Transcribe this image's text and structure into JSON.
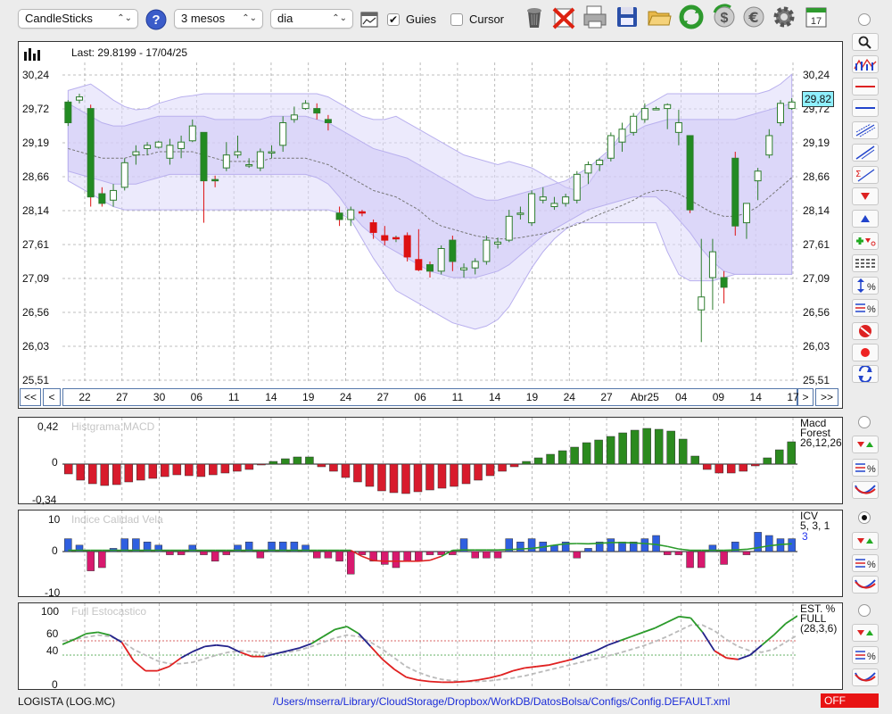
{
  "toolbar": {
    "chart_type": "CandleSticks",
    "period": "3 mesos",
    "interval": "dia",
    "guides_label": "Guies",
    "guides_checked": true,
    "cursor_label": "Cursor",
    "cursor_checked": false
  },
  "price_panel": {
    "last_info": "Last: 29.8199 - 17/04/25",
    "current_value": "29,82",
    "y_labels": [
      "30,24",
      "29,72",
      "29,19",
      "28,66",
      "28,14",
      "27,61",
      "27,09",
      "26,56",
      "26,03",
      "25,51"
    ],
    "x_labels": [
      "22",
      "27",
      "30",
      "06",
      "11",
      "14",
      "19",
      "24",
      "27",
      "06",
      "11",
      "14",
      "19",
      "24",
      "27",
      "Abr25",
      "04",
      "09",
      "14",
      "17"
    ]
  },
  "nav": {
    "first": "<<",
    "prev": "<",
    "next": ">",
    "last": ">>"
  },
  "macd": {
    "title": "Histgrama MACD",
    "label1": "Macd",
    "label2": "Forest",
    "label3": "26,12,26",
    "y_labels": [
      "0,42",
      "0",
      "-0,34"
    ],
    "values": [
      -0.11,
      -0.18,
      -0.22,
      -0.24,
      -0.23,
      -0.2,
      -0.18,
      -0.16,
      -0.14,
      -0.12,
      -0.13,
      -0.14,
      -0.12,
      -0.1,
      -0.08,
      -0.06,
      -0.01,
      0.03,
      0.06,
      0.08,
      0.08,
      -0.03,
      -0.08,
      -0.15,
      -0.2,
      -0.25,
      -0.3,
      -0.32,
      -0.33,
      -0.31,
      -0.29,
      -0.27,
      -0.25,
      -0.22,
      -0.18,
      -0.13,
      -0.08,
      -0.03,
      0.03,
      0.07,
      0.11,
      0.15,
      0.19,
      0.24,
      0.27,
      0.31,
      0.35,
      0.38,
      0.4,
      0.39,
      0.37,
      0.28,
      0.09,
      -0.06,
      -0.1,
      -0.1,
      -0.08,
      -0.02,
      0.07,
      0.16,
      0.25
    ]
  },
  "icv": {
    "title": "Indice Calidad Vela",
    "label1": "ICV",
    "label2": "5, 3, 1",
    "label3": "3",
    "y_labels": [
      "10",
      "0",
      "-10"
    ],
    "values": [
      4,
      2,
      -6,
      -5,
      1,
      4,
      4,
      3,
      2,
      -1,
      -1,
      2,
      -1,
      -3,
      -1,
      2,
      3,
      -2,
      3,
      3,
      3,
      2,
      -2,
      -2,
      -3,
      -7,
      -1,
      -3,
      -4,
      -5,
      -3,
      -3,
      -1,
      -1,
      -1,
      4,
      -2,
      -2,
      -2,
      4,
      3,
      4,
      3,
      2,
      3,
      -2,
      1,
      3,
      4,
      3,
      3,
      4,
      5,
      -1,
      -1,
      -5,
      -5,
      2,
      -4,
      3,
      -1,
      6,
      5,
      4,
      4
    ],
    "signal": [
      0.4,
      0.4,
      0.4,
      0.4,
      0.4,
      0.4,
      0.4,
      0.4,
      0.4,
      0.4,
      0.4,
      0.4,
      0.4,
      0.4,
      0.4,
      0.4,
      0.4,
      0.4,
      0.4,
      0.4,
      0.4,
      0.4,
      0.4,
      0.4,
      0.4,
      0.4,
      -1.5,
      -2.8,
      -3.0,
      -3.0,
      -3.0,
      -3.0,
      -2.7,
      -1.5,
      0.4,
      0.5,
      0.5,
      0.5,
      0.5,
      0.6,
      0.8,
      1,
      1.4,
      2,
      2.4,
      2.5,
      2.4,
      2.6,
      2.8,
      2.8,
      2.7,
      2.5,
      2.2,
      1.6,
      0.8,
      0.4,
      0.4,
      0.4,
      0.4,
      0.5,
      0.7,
      1.2,
      1.8,
      2.2,
      2.4
    ]
  },
  "stoch": {
    "title": "Full Estocastico",
    "label1": "EST. %",
    "label2": "FULL",
    "label3": "(28,3,6)",
    "y_labels": [
      "100",
      "60",
      "40",
      "0"
    ],
    "k": [
      55,
      62,
      70,
      72,
      68,
      58,
      32,
      18,
      18,
      24,
      36,
      45,
      52,
      54,
      52,
      44,
      38,
      38,
      42,
      46,
      50,
      56,
      66,
      76,
      80,
      70,
      52,
      34,
      20,
      9,
      5,
      3,
      2,
      2,
      3,
      5,
      8,
      12,
      18,
      22,
      24,
      26,
      30,
      34,
      40,
      46,
      54,
      60,
      66,
      72,
      78,
      86,
      94,
      92,
      72,
      46,
      36,
      34,
      40,
      54,
      68,
      84,
      95
    ],
    "d": [
      60,
      62,
      65,
      68,
      66,
      60,
      48,
      40,
      32,
      28,
      28,
      30,
      35,
      40,
      44,
      46,
      45,
      43,
      42,
      44,
      47,
      52,
      58,
      64,
      68,
      66,
      58,
      48,
      36,
      24,
      16,
      10,
      6,
      4,
      3,
      3,
      4,
      6,
      8,
      11,
      15,
      19,
      23,
      27,
      31,
      35,
      39,
      43,
      48,
      53,
      59,
      66,
      74,
      82,
      82,
      74,
      62,
      52,
      46,
      44,
      48,
      58,
      68
    ]
  },
  "status": {
    "ticker": "LOGISTA (LOG.MC)",
    "config_path": "/Users/mserra/Library/CloudStorage/Dropbox/WorkDB/DatosBolsa/Configs/Config.DEFAULT.xml",
    "off_label": "OFF"
  },
  "colors": {
    "bull": "#228b22",
    "bear": "#dd1111",
    "band": "#ddd8fa",
    "macd_pos": "#2b8a1e",
    "macd_neg": "#d81b2c",
    "icv_pos": "#2f5fe0",
    "icv_neg": "#d8196e"
  },
  "chart_data": {
    "type": "candlestick",
    "y_range": [
      25.51,
      30.24
    ],
    "candles": [
      {
        "o": 29.5,
        "h": 29.85,
        "l": 29.45,
        "c": 29.82
      },
      {
        "o": 29.85,
        "h": 29.95,
        "l": 29.8,
        "c": 29.9
      },
      {
        "o": 29.72,
        "h": 29.78,
        "l": 28.2,
        "c": 28.35
      },
      {
        "o": 28.4,
        "h": 28.5,
        "l": 28.2,
        "c": 28.25
      },
      {
        "o": 28.3,
        "h": 28.55,
        "l": 28.2,
        "c": 28.45
      },
      {
        "o": 28.5,
        "h": 28.95,
        "l": 28.45,
        "c": 28.88
      },
      {
        "o": 29.0,
        "h": 29.15,
        "l": 28.85,
        "c": 29.05
      },
      {
        "o": 29.1,
        "h": 29.2,
        "l": 29.0,
        "c": 29.15
      },
      {
        "o": 29.12,
        "h": 29.22,
        "l": 29.1,
        "c": 29.2
      },
      {
        "o": 28.95,
        "h": 29.25,
        "l": 28.85,
        "c": 29.15
      },
      {
        "o": 29.1,
        "h": 29.3,
        "l": 28.95,
        "c": 29.2
      },
      {
        "o": 29.22,
        "h": 29.55,
        "l": 29.2,
        "c": 29.45
      },
      {
        "o": 29.35,
        "h": 29.35,
        "l": 27.95,
        "c": 28.6
      },
      {
        "o": 28.62,
        "h": 28.68,
        "l": 28.5,
        "c": 28.6
      },
      {
        "o": 28.8,
        "h": 29.2,
        "l": 28.75,
        "c": 29.0
      },
      {
        "o": 29.0,
        "h": 29.3,
        "l": 28.95,
        "c": 29.05
      },
      {
        "o": 28.85,
        "h": 28.95,
        "l": 28.8,
        "c": 28.85
      },
      {
        "o": 28.8,
        "h": 29.1,
        "l": 28.75,
        "c": 29.05
      },
      {
        "o": 29.05,
        "h": 29.15,
        "l": 28.95,
        "c": 29.05
      },
      {
        "o": 29.15,
        "h": 29.6,
        "l": 29.05,
        "c": 29.5
      },
      {
        "o": 29.55,
        "h": 29.75,
        "l": 29.5,
        "c": 29.62
      },
      {
        "o": 29.72,
        "h": 29.85,
        "l": 29.7,
        "c": 29.8
      },
      {
        "o": 29.72,
        "h": 29.8,
        "l": 29.55,
        "c": 29.65
      },
      {
        "o": 29.55,
        "h": 29.62,
        "l": 29.38,
        "c": 29.5
      },
      {
        "o": 28.1,
        "h": 28.2,
        "l": 27.9,
        "c": 28.0
      },
      {
        "o": 28.0,
        "h": 28.2,
        "l": 27.9,
        "c": 28.15
      },
      {
        "o": 28.12,
        "h": 28.15,
        "l": 28.05,
        "c": 28.1
      },
      {
        "o": 27.95,
        "h": 28.0,
        "l": 27.7,
        "c": 27.8
      },
      {
        "o": 27.75,
        "h": 27.9,
        "l": 27.6,
        "c": 27.68
      },
      {
        "o": 27.7,
        "h": 27.75,
        "l": 27.65,
        "c": 27.72
      },
      {
        "o": 27.75,
        "h": 27.8,
        "l": 27.35,
        "c": 27.42
      },
      {
        "o": 27.38,
        "h": 27.85,
        "l": 27.2,
        "c": 27.22
      },
      {
        "o": 27.3,
        "h": 27.35,
        "l": 27.1,
        "c": 27.2
      },
      {
        "o": 27.2,
        "h": 27.6,
        "l": 27.15,
        "c": 27.55
      },
      {
        "o": 27.68,
        "h": 27.75,
        "l": 27.2,
        "c": 27.35
      },
      {
        "o": 27.22,
        "h": 27.32,
        "l": 27.1,
        "c": 27.25
      },
      {
        "o": 27.25,
        "h": 27.4,
        "l": 27.15,
        "c": 27.35
      },
      {
        "o": 27.35,
        "h": 27.75,
        "l": 27.3,
        "c": 27.68
      },
      {
        "o": 27.62,
        "h": 27.72,
        "l": 27.55,
        "c": 27.65
      },
      {
        "o": 27.68,
        "h": 28.15,
        "l": 27.65,
        "c": 28.05
      },
      {
        "o": 28.1,
        "h": 28.2,
        "l": 28.0,
        "c": 28.1
      },
      {
        "o": 27.95,
        "h": 28.45,
        "l": 27.9,
        "c": 28.4
      },
      {
        "o": 28.3,
        "h": 28.5,
        "l": 28.25,
        "c": 28.35
      },
      {
        "o": 28.2,
        "h": 28.35,
        "l": 28.15,
        "c": 28.25
      },
      {
        "o": 28.25,
        "h": 28.4,
        "l": 28.2,
        "c": 28.35
      },
      {
        "o": 28.3,
        "h": 28.75,
        "l": 28.25,
        "c": 28.7
      },
      {
        "o": 28.72,
        "h": 28.9,
        "l": 28.55,
        "c": 28.85
      },
      {
        "o": 28.85,
        "h": 28.95,
        "l": 28.75,
        "c": 28.92
      },
      {
        "o": 28.95,
        "h": 29.35,
        "l": 28.9,
        "c": 29.3
      },
      {
        "o": 29.2,
        "h": 29.5,
        "l": 29.05,
        "c": 29.4
      },
      {
        "o": 29.35,
        "h": 29.65,
        "l": 29.3,
        "c": 29.6
      },
      {
        "o": 29.55,
        "h": 29.8,
        "l": 29.5,
        "c": 29.72
      },
      {
        "o": 29.72,
        "h": 29.75,
        "l": 29.7,
        "c": 29.72
      },
      {
        "o": 29.72,
        "h": 29.8,
        "l": 29.4,
        "c": 29.78
      },
      {
        "o": 29.35,
        "h": 29.7,
        "l": 29.15,
        "c": 29.5
      },
      {
        "o": 29.3,
        "h": 29.3,
        "l": 28.1,
        "c": 28.15
      },
      {
        "o": 26.6,
        "h": 27.7,
        "l": 26.1,
        "c": 26.8
      },
      {
        "o": 27.1,
        "h": 27.7,
        "l": 26.6,
        "c": 27.5
      },
      {
        "o": 27.1,
        "h": 27.2,
        "l": 26.7,
        "c": 26.95
      },
      {
        "o": 28.95,
        "h": 29.05,
        "l": 27.75,
        "c": 27.9
      },
      {
        "o": 27.95,
        "h": 28.25,
        "l": 27.7,
        "c": 28.25
      },
      {
        "o": 28.6,
        "h": 28.8,
        "l": 28.3,
        "c": 28.75
      },
      {
        "o": 29.0,
        "h": 29.4,
        "l": 28.95,
        "c": 29.3
      },
      {
        "o": 29.5,
        "h": 29.85,
        "l": 29.45,
        "c": 29.8
      },
      {
        "o": 29.72,
        "h": 29.88,
        "l": 29.7,
        "c": 29.82
      }
    ],
    "bollinger_upper": [
      30.0,
      30.05,
      30.1,
      29.98,
      29.85,
      29.75,
      29.7,
      29.72,
      29.8,
      29.85,
      29.9,
      29.92,
      29.95,
      29.95,
      29.95,
      29.95,
      29.95,
      29.95,
      29.95,
      29.95,
      29.95,
      29.95,
      29.95,
      29.9,
      29.8,
      29.7,
      29.6,
      29.55,
      29.55,
      29.6,
      29.5,
      29.4,
      29.3,
      29.2,
      29.1,
      29.0,
      28.95,
      28.9,
      28.85,
      28.9,
      28.85,
      28.8,
      28.7,
      28.6,
      28.5,
      28.45,
      28.55,
      28.8,
      29.1,
      29.35,
      29.55,
      29.75,
      29.85,
      29.95,
      29.95,
      29.95,
      29.95,
      29.95,
      29.95,
      29.95,
      29.95,
      29.95,
      30.0,
      30.1,
      30.25
    ],
    "bollinger_lower": [
      28.6,
      28.5,
      28.4,
      28.3,
      28.2,
      28.15,
      28.15,
      28.15,
      28.15,
      28.15,
      28.15,
      28.15,
      28.15,
      28.15,
      28.15,
      28.15,
      28.15,
      28.15,
      28.15,
      28.15,
      28.15,
      28.15,
      28.15,
      28.15,
      28.1,
      28.0,
      27.7,
      27.4,
      27.15,
      26.9,
      26.8,
      26.7,
      26.6,
      26.5,
      26.4,
      26.35,
      26.3,
      26.35,
      26.45,
      26.65,
      26.95,
      27.25,
      27.5,
      27.7,
      27.85,
      27.95,
      27.95,
      27.95,
      27.95,
      27.95,
      27.95,
      27.95,
      27.95,
      27.5,
      27.15,
      27.05,
      27.05,
      27.05,
      27.1,
      27.15,
      27.15,
      27.15,
      27.15,
      27.15,
      27.15
    ],
    "bollinger_inner_upper": [
      29.8,
      29.7,
      29.6,
      29.5,
      29.45,
      29.45,
      29.5,
      29.55,
      29.6,
      29.6,
      29.6,
      29.6,
      29.6,
      29.55,
      29.55,
      29.55,
      29.55,
      29.55,
      29.6,
      29.6,
      29.6,
      29.6,
      29.55,
      29.5,
      29.4,
      29.3,
      29.2,
      29.1,
      29.05,
      29.0,
      28.95,
      28.85,
      28.75,
      28.65,
      28.55,
      28.45,
      28.35,
      28.3,
      28.3,
      28.35,
      28.4,
      28.45,
      28.5,
      28.55,
      28.6,
      28.7,
      28.8,
      28.95,
      29.1,
      29.25,
      29.35,
      29.45,
      29.5,
      29.55,
      29.55,
      29.55,
      29.55,
      29.55,
      29.55,
      29.55,
      29.6,
      29.65,
      29.7,
      29.75,
      29.8
    ],
    "bollinger_inner_lower": [
      28.75,
      28.7,
      28.65,
      28.6,
      28.55,
      28.55,
      28.55,
      28.6,
      28.65,
      28.7,
      28.7,
      28.7,
      28.7,
      28.7,
      28.7,
      28.7,
      28.7,
      28.7,
      28.7,
      28.7,
      28.7,
      28.7,
      28.65,
      28.55,
      28.35,
      28.1,
      27.9,
      27.75,
      27.6,
      27.5,
      27.4,
      27.3,
      27.2,
      27.15,
      27.1,
      27.1,
      27.1,
      27.15,
      27.2,
      27.3,
      27.45,
      27.6,
      27.75,
      27.85,
      27.95,
      28.05,
      28.15,
      28.2,
      28.25,
      28.3,
      28.35,
      28.35,
      28.35,
      28.2,
      28.0,
      27.8,
      27.55,
      27.35,
      27.2,
      27.15,
      27.15,
      27.15,
      27.15,
      27.15,
      27.15
    ],
    "moving_average": [
      29.1,
      29.05,
      29.0,
      28.95,
      28.95,
      28.95,
      29.0,
      29.0,
      29.05,
      29.05,
      29.05,
      29.05,
      29.0,
      28.95,
      28.9,
      28.9,
      28.9,
      28.9,
      28.95,
      28.95,
      28.95,
      28.95,
      28.9,
      28.85,
      28.75,
      28.65,
      28.55,
      28.45,
      28.4,
      28.35,
      28.25,
      28.15,
      28.0,
      27.9,
      27.85,
      27.8,
      27.75,
      27.72,
      27.7,
      27.7,
      27.72,
      27.75,
      27.78,
      27.82,
      27.87,
      27.92,
      28.0,
      28.08,
      28.15,
      28.22,
      28.3,
      28.4,
      28.45,
      28.45,
      28.4,
      28.3,
      28.2,
      28.1,
      28.05,
      28.05,
      28.1,
      28.2,
      28.35,
      28.5,
      28.65
    ]
  }
}
